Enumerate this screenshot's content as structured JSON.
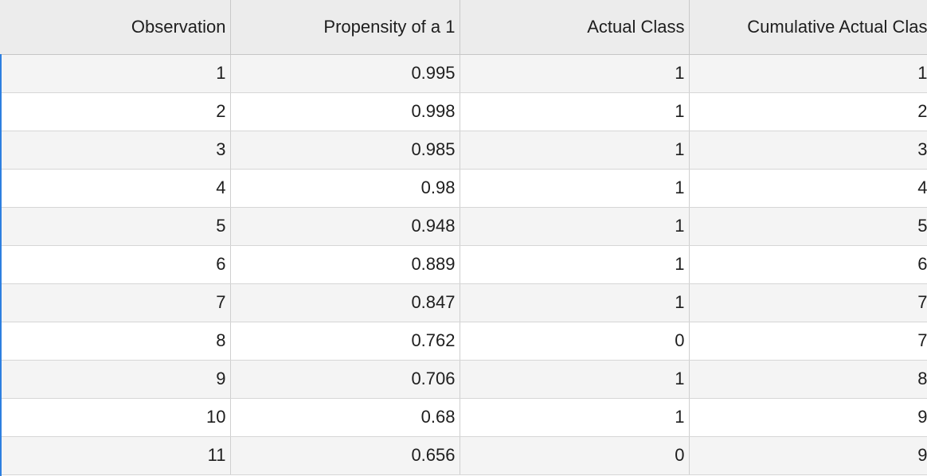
{
  "table": {
    "headers": [
      "Observation",
      "Propensity of a 1",
      "Actual Class",
      "Cumulative Actual Clas"
    ],
    "rows": [
      [
        "1",
        "0.995",
        "1",
        "1"
      ],
      [
        "2",
        "0.998",
        "1",
        "2"
      ],
      [
        "3",
        "0.985",
        "1",
        "3"
      ],
      [
        "4",
        "0.98",
        "1",
        "4"
      ],
      [
        "5",
        "0.948",
        "1",
        "5"
      ],
      [
        "6",
        "0.889",
        "1",
        "6"
      ],
      [
        "7",
        "0.847",
        "1",
        "7"
      ],
      [
        "8",
        "0.762",
        "0",
        "7"
      ],
      [
        "9",
        "0.706",
        "1",
        "8"
      ],
      [
        "10",
        "0.68",
        "1",
        "9"
      ],
      [
        "11",
        "0.656",
        "0",
        "9"
      ]
    ]
  },
  "colors": {
    "header_bg": "#ececec",
    "row_alt_bg": "#f4f4f4",
    "selection_accent": "#2d7fe0"
  }
}
